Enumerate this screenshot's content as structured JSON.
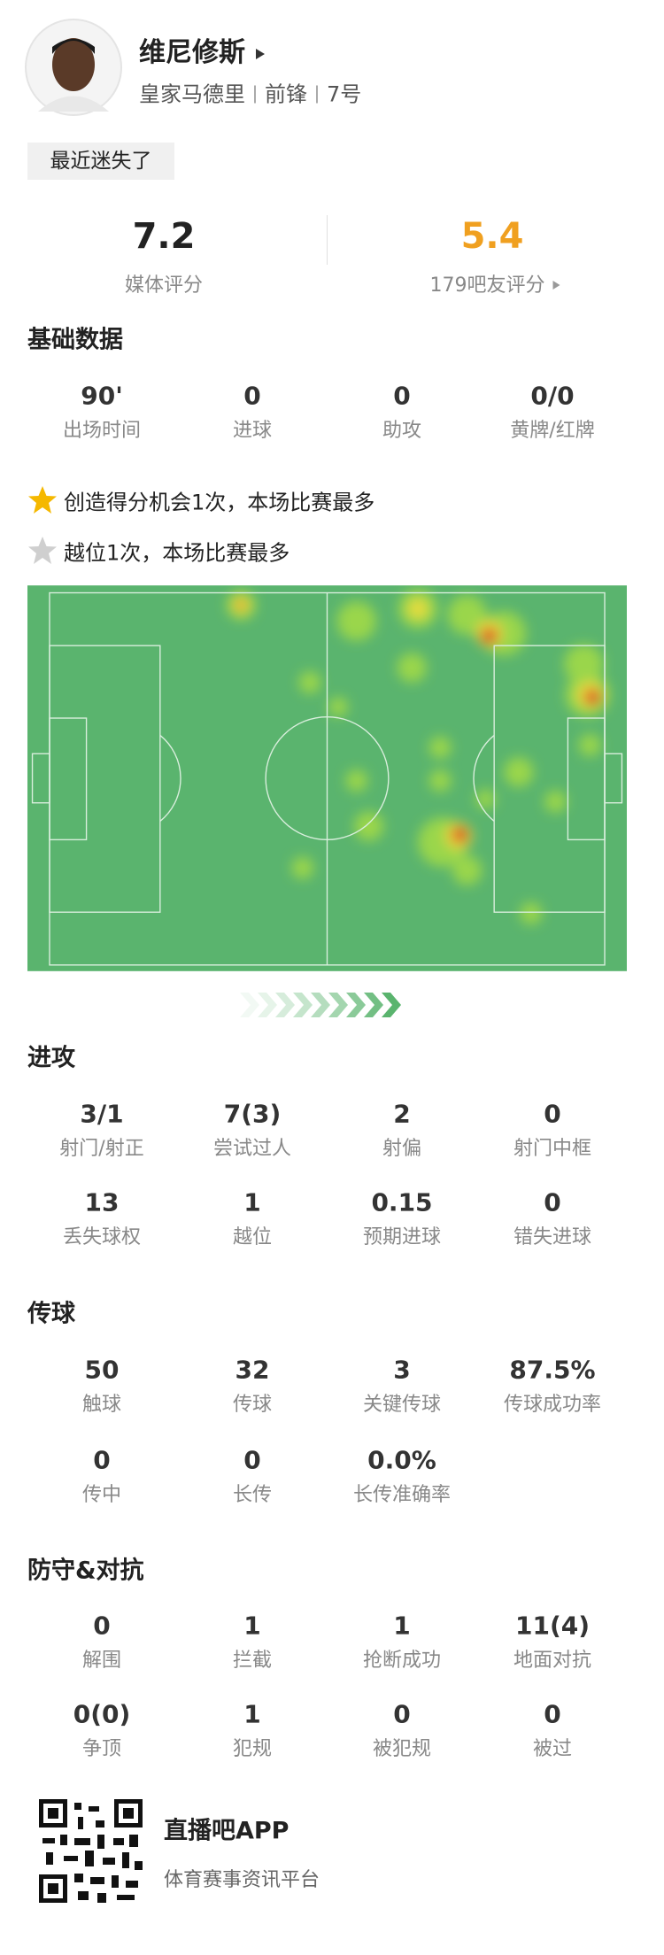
{
  "header": {
    "name": "维尼修斯",
    "team": "皇家马德里",
    "position": "前锋",
    "number": "7号",
    "tag": "最近迷失了"
  },
  "ratings": [
    {
      "value": "7.2",
      "label": "媒体评分"
    },
    {
      "value": "5.4",
      "label": "179吧友评分"
    }
  ],
  "highlights": [
    "创造得分机会1次，本场比赛最多",
    "越位1次，本场比赛最多"
  ],
  "sections": [
    {
      "title": "基础数据",
      "stats": [
        {
          "value": "90'",
          "label": "出场时间"
        },
        {
          "value": "0",
          "label": "进球"
        },
        {
          "value": "0",
          "label": "助攻"
        },
        {
          "value": "0/0",
          "label": "黄牌/红牌"
        }
      ]
    },
    {
      "title": "进攻",
      "stats": [
        {
          "value": "3/1",
          "label": "射门/射正"
        },
        {
          "value": "7(3)",
          "label": "尝试过人"
        },
        {
          "value": "2",
          "label": "射偏"
        },
        {
          "value": "0",
          "label": "射门中框"
        },
        {
          "value": "13",
          "label": "丢失球权"
        },
        {
          "value": "1",
          "label": "越位"
        },
        {
          "value": "0.15",
          "label": "预期进球"
        },
        {
          "value": "0",
          "label": "错失进球"
        }
      ]
    },
    {
      "title": "传球",
      "stats": [
        {
          "value": "50",
          "label": "触球"
        },
        {
          "value": "32",
          "label": "传球"
        },
        {
          "value": "3",
          "label": "关键传球"
        },
        {
          "value": "87.5%",
          "label": "传球成功率"
        },
        {
          "value": "0",
          "label": "传中"
        },
        {
          "value": "0",
          "label": "长传"
        },
        {
          "value": "0.0%",
          "label": "长传准确率"
        }
      ]
    },
    {
      "title": "防守&对抗",
      "stats": [
        {
          "value": "0",
          "label": "解围"
        },
        {
          "value": "1",
          "label": "拦截"
        },
        {
          "value": "1",
          "label": "抢断成功"
        },
        {
          "value": "11(4)",
          "label": "地面对抗"
        },
        {
          "value": "0(0)",
          "label": "争顶"
        },
        {
          "value": "1",
          "label": "犯规"
        },
        {
          "value": "0",
          "label": "被犯规"
        },
        {
          "value": "0",
          "label": "被过"
        }
      ]
    }
  ],
  "footer": {
    "app": "直播吧APP",
    "slogan": "体育赛事资讯平台"
  }
}
